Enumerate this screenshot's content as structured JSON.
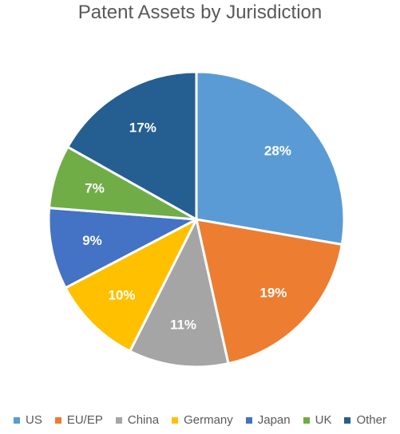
{
  "chart_data": {
    "type": "pie",
    "title": "Patent Assets by Jurisdiction",
    "categories": [
      "US",
      "EU/EP",
      "China",
      "Germany",
      "Japan",
      "UK",
      "Other"
    ],
    "values": [
      28,
      19,
      11,
      10,
      9,
      7,
      17
    ],
    "labels": [
      "28%",
      "19%",
      "11%",
      "10%",
      "9%",
      "7%",
      "17%"
    ],
    "colors": [
      "#5B9BD5",
      "#ED7D31",
      "#A5A5A5",
      "#FFC000",
      "#4472C4",
      "#70AD47",
      "#255E91"
    ],
    "legend_position": "bottom",
    "start_angle": "12 o'clock",
    "direction": "clockwise"
  }
}
